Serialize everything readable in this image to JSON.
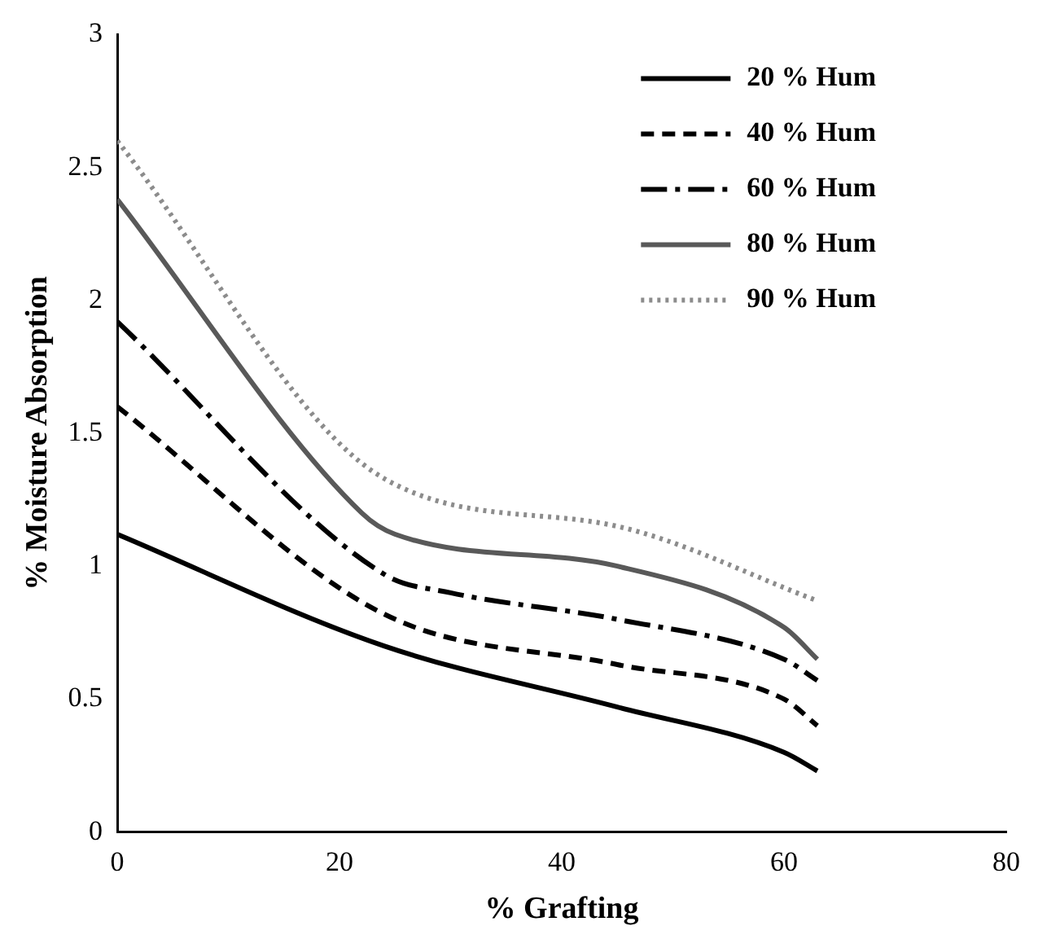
{
  "chart_data": {
    "type": "line",
    "xlabel": "% Grafting",
    "ylabel": "% Moisture Absorption",
    "xlim": [
      0,
      80
    ],
    "xticks": [
      0,
      20,
      40,
      60,
      80
    ],
    "ylim": [
      0,
      3
    ],
    "yticks": [
      0,
      0.5,
      1,
      1.5,
      2,
      2.5,
      3
    ],
    "grid": false,
    "legend": "top right",
    "marker": "none",
    "series": [
      {
        "name": "20 % Hum",
        "color": "#000000",
        "line_style": "solid",
        "x": [
          0,
          24,
          45,
          60,
          63
        ],
        "values": [
          1.12,
          0.7,
          0.47,
          0.3,
          0.23
        ]
      },
      {
        "name": "40 % Hum",
        "color": "#000000",
        "line_style": "dashed",
        "x": [
          0,
          24,
          45,
          60,
          63
        ],
        "values": [
          1.6,
          0.82,
          0.63,
          0.5,
          0.4
        ]
      },
      {
        "name": "60 % Hum",
        "color": "#000000",
        "line_style": "dashdot",
        "x": [
          0,
          24,
          30,
          45,
          60,
          63
        ],
        "values": [
          1.92,
          0.97,
          0.9,
          0.8,
          0.65,
          0.57
        ]
      },
      {
        "name": "80 % Hum",
        "color": "#595959",
        "line_style": "solid",
        "x": [
          0,
          22,
          25,
          45,
          60,
          63
        ],
        "values": [
          2.38,
          1.2,
          1.12,
          1.0,
          0.77,
          0.65
        ]
      },
      {
        "name": "90 % Hum",
        "color": "#8c8c8c",
        "line_style": "dotted",
        "x": [
          0,
          24,
          45,
          63
        ],
        "values": [
          2.6,
          1.33,
          1.15,
          0.87
        ]
      }
    ]
  }
}
